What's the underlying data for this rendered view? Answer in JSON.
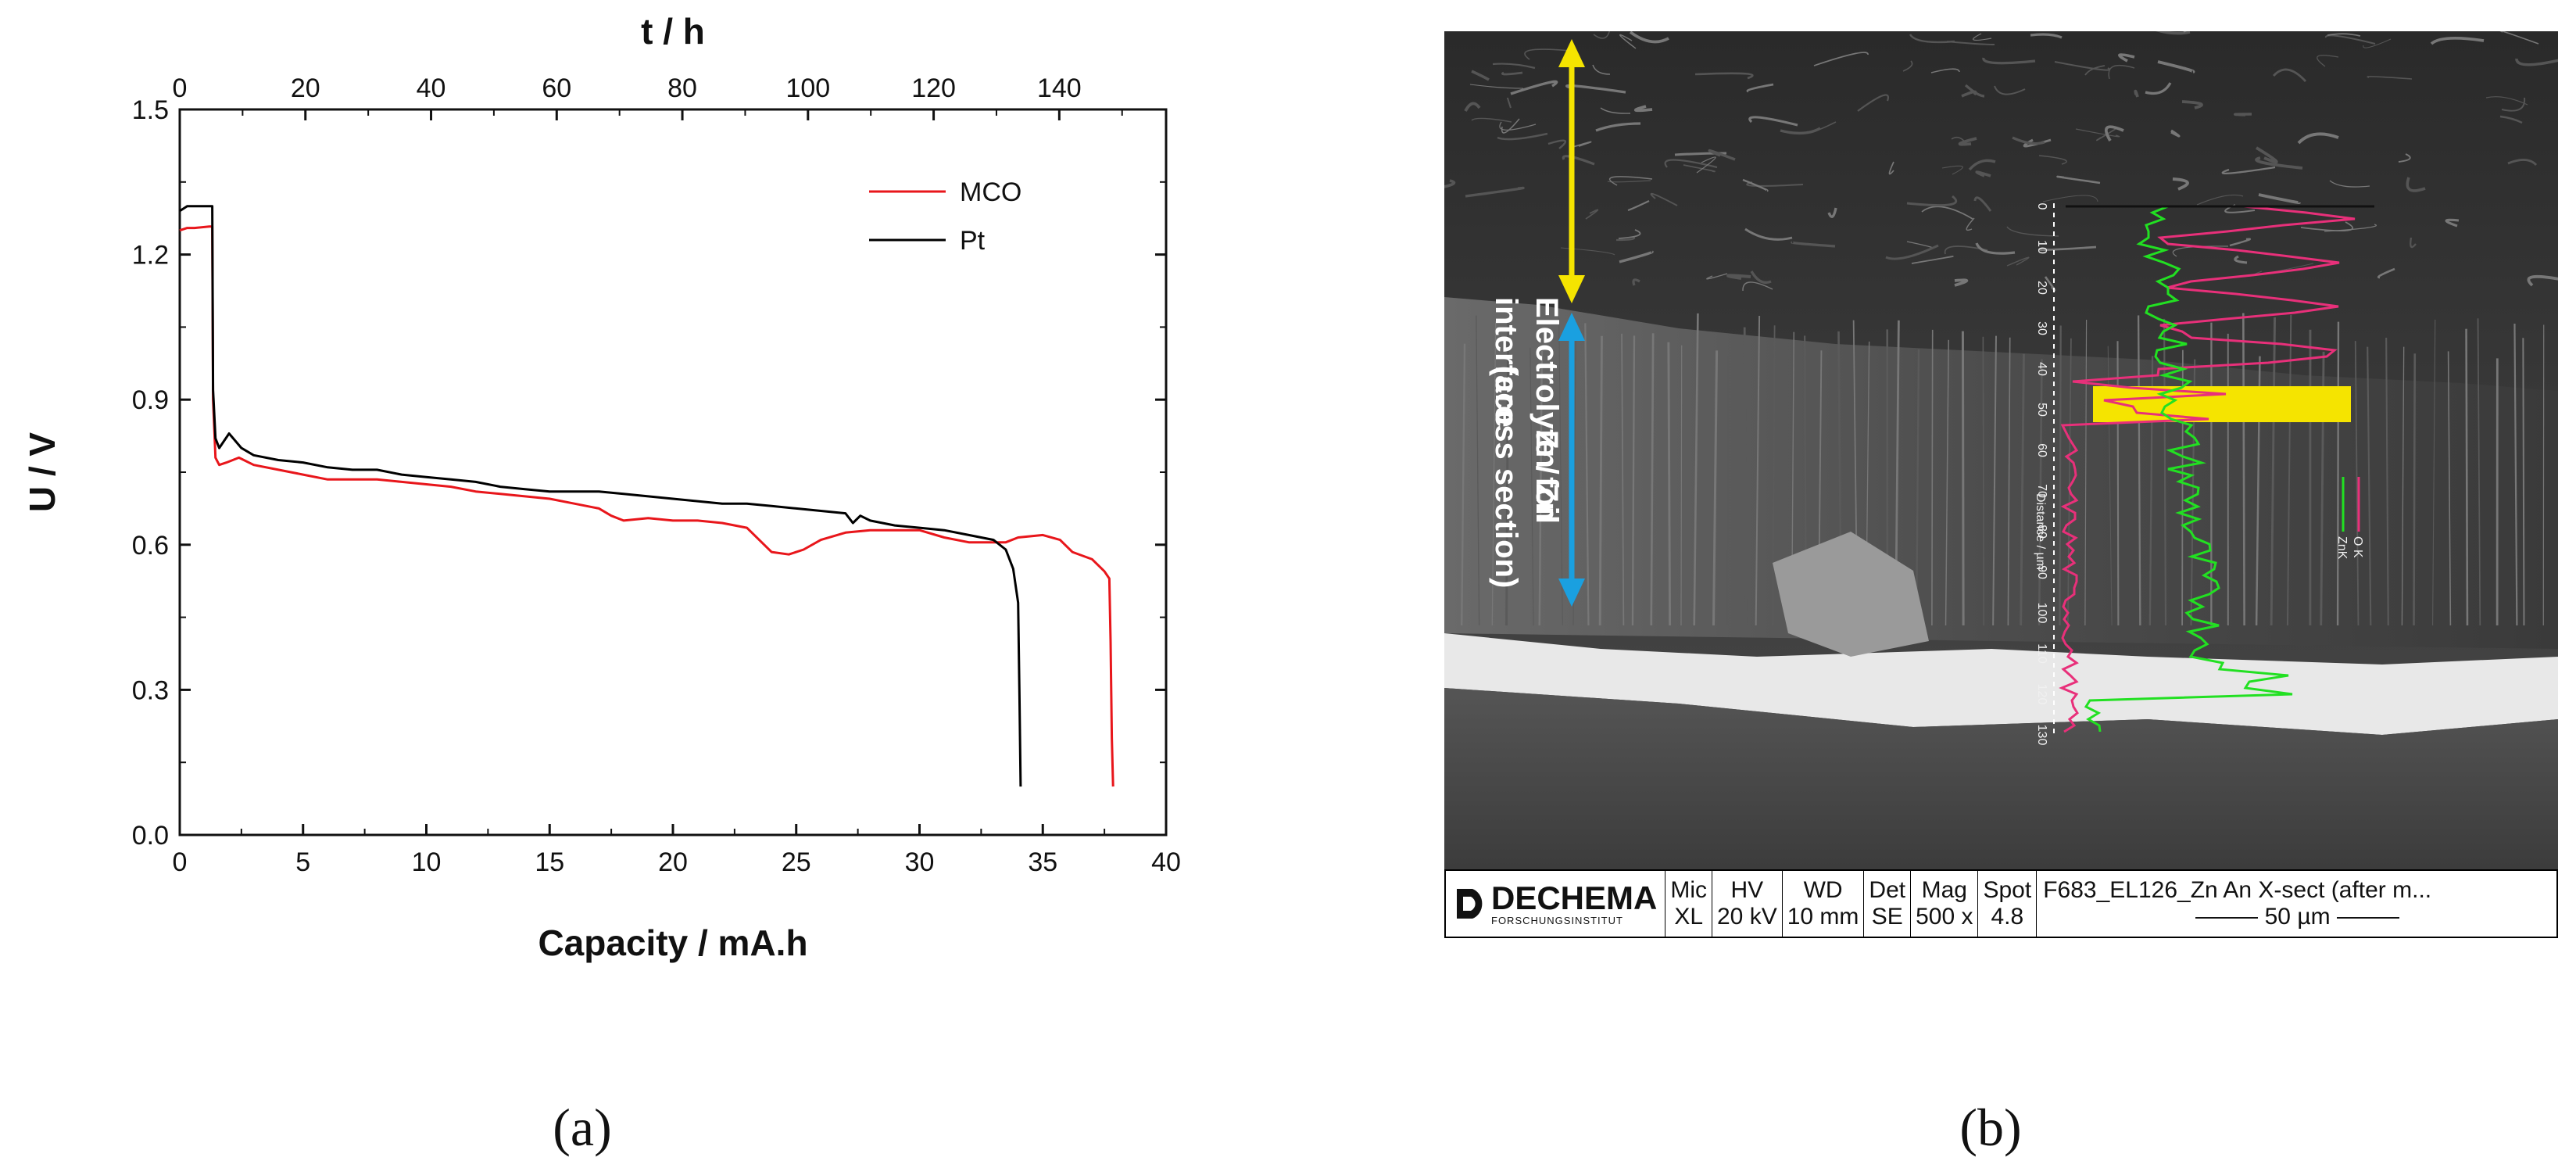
{
  "chart_data": {
    "type": "line",
    "title": "",
    "xlabel": "Capacity / mA.h",
    "ylabel": "U / V",
    "x2label": "t / h",
    "xlim": [
      0,
      40
    ],
    "ylim": [
      0,
      1.5
    ],
    "x2lim": [
      0,
      157
    ],
    "x_ticks": [
      "0",
      "5",
      "10",
      "15",
      "20",
      "25",
      "30",
      "35",
      "40"
    ],
    "y_ticks": [
      "0.0",
      "0.3",
      "0.6",
      "0.9",
      "1.2",
      "1.5"
    ],
    "x2_ticks": [
      "0",
      "20",
      "40",
      "60",
      "80",
      "100",
      "120",
      "140"
    ],
    "legend_position": "top-right",
    "series": [
      {
        "name": "MCO",
        "color": "#e8161b",
        "points": [
          [
            0,
            1.25
          ],
          [
            0.3,
            1.255
          ],
          [
            0.6,
            1.255
          ],
          [
            1.2,
            1.258
          ],
          [
            1.32,
            1.258
          ],
          [
            1.35,
            0.9
          ],
          [
            1.45,
            0.78
          ],
          [
            1.6,
            0.765
          ],
          [
            1.9,
            0.77
          ],
          [
            2.4,
            0.78
          ],
          [
            3,
            0.765
          ],
          [
            4,
            0.755
          ],
          [
            5,
            0.745
          ],
          [
            6,
            0.735
          ],
          [
            7,
            0.735
          ],
          [
            8,
            0.735
          ],
          [
            9,
            0.73
          ],
          [
            10,
            0.725
          ],
          [
            11,
            0.72
          ],
          [
            12,
            0.71
          ],
          [
            13,
            0.705
          ],
          [
            14,
            0.7
          ],
          [
            15,
            0.695
          ],
          [
            16,
            0.685
          ],
          [
            17,
            0.675
          ],
          [
            17.5,
            0.66
          ],
          [
            18,
            0.65
          ],
          [
            19,
            0.655
          ],
          [
            20,
            0.65
          ],
          [
            21,
            0.65
          ],
          [
            22,
            0.645
          ],
          [
            23,
            0.635
          ],
          [
            23.5,
            0.61
          ],
          [
            24,
            0.585
          ],
          [
            24.7,
            0.58
          ],
          [
            25.3,
            0.59
          ],
          [
            26,
            0.61
          ],
          [
            27,
            0.625
          ],
          [
            28,
            0.63
          ],
          [
            29,
            0.63
          ],
          [
            30,
            0.63
          ],
          [
            31,
            0.615
          ],
          [
            32,
            0.605
          ],
          [
            33,
            0.605
          ],
          [
            33.5,
            0.605
          ],
          [
            34,
            0.615
          ],
          [
            35,
            0.62
          ],
          [
            35.7,
            0.61
          ],
          [
            36.2,
            0.585
          ],
          [
            37,
            0.57
          ],
          [
            37.5,
            0.545
          ],
          [
            37.7,
            0.53
          ],
          [
            37.75,
            0.4
          ],
          [
            37.8,
            0.2
          ],
          [
            37.85,
            0.1
          ]
        ]
      },
      {
        "name": "Pt",
        "color": "#000000",
        "points": [
          [
            0,
            1.29
          ],
          [
            0.3,
            1.3
          ],
          [
            0.8,
            1.3
          ],
          [
            1.32,
            1.3
          ],
          [
            1.35,
            0.92
          ],
          [
            1.45,
            0.82
          ],
          [
            1.6,
            0.8
          ],
          [
            2,
            0.83
          ],
          [
            2.5,
            0.8
          ],
          [
            3,
            0.785
          ],
          [
            4,
            0.775
          ],
          [
            5,
            0.77
          ],
          [
            6,
            0.76
          ],
          [
            7,
            0.755
          ],
          [
            8,
            0.755
          ],
          [
            9,
            0.745
          ],
          [
            10,
            0.74
          ],
          [
            11,
            0.735
          ],
          [
            12,
            0.73
          ],
          [
            13,
            0.72
          ],
          [
            14,
            0.715
          ],
          [
            15,
            0.71
          ],
          [
            16,
            0.71
          ],
          [
            17,
            0.71
          ],
          [
            18,
            0.705
          ],
          [
            19,
            0.7
          ],
          [
            20,
            0.695
          ],
          [
            21,
            0.69
          ],
          [
            22,
            0.685
          ],
          [
            23,
            0.685
          ],
          [
            24,
            0.68
          ],
          [
            25,
            0.675
          ],
          [
            26,
            0.67
          ],
          [
            27,
            0.665
          ],
          [
            27.3,
            0.645
          ],
          [
            27.6,
            0.66
          ],
          [
            28,
            0.65
          ],
          [
            29,
            0.64
          ],
          [
            30,
            0.635
          ],
          [
            31,
            0.63
          ],
          [
            32,
            0.62
          ],
          [
            33,
            0.61
          ],
          [
            33.5,
            0.59
          ],
          [
            33.8,
            0.55
          ],
          [
            34,
            0.48
          ],
          [
            34.05,
            0.3
          ],
          [
            34.1,
            0.1
          ]
        ]
      }
    ]
  },
  "panel_a_label": "(a)",
  "panel_b_label": "(b)",
  "sem": {
    "label_top_line1": "Electrolyte / Zn",
    "label_top_line2": "interface",
    "label_mid_line1": "Zn foil",
    "label_mid_line2": "(cross section)",
    "arrow_top_color": "#f5e400",
    "arrow_mid_color": "#1aa0e0",
    "highlight_color": "#f5e400",
    "profile_axis_label": "Distance / µm",
    "profile_axis_ticks": [
      "0",
      "10",
      "20",
      "30",
      "40",
      "50",
      "60",
      "70",
      "80",
      "90",
      "100",
      "110",
      "120",
      "130"
    ],
    "profile_legend": [
      "O K",
      "ZnK"
    ],
    "profile_colors": [
      "#e8307a",
      "#22e022"
    ],
    "info": {
      "logo": "DECHEMA",
      "logo_sub": "FORSCHUNGSINSTITUT",
      "mic_label": "Mic",
      "mic_value": "XL",
      "hv_label": "HV",
      "hv_value": "20 kV",
      "wd_label": "WD",
      "wd_value": "10 mm",
      "det_label": "Det",
      "det_value": "SE",
      "mag_label": "Mag",
      "mag_value": "500 x",
      "spot_label": "Spot",
      "spot_value": "4.8",
      "description": "F683_EL126_Zn An X-sect (after m...",
      "scale": "50 µm"
    }
  }
}
